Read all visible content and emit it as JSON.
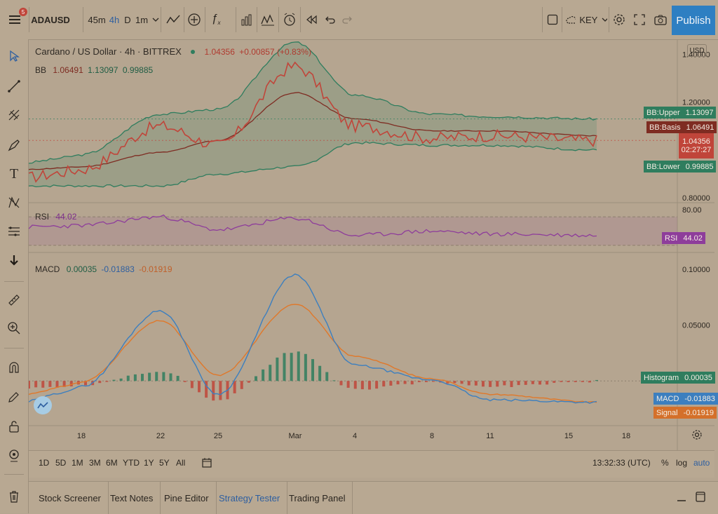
{
  "toolbar": {
    "menu_badge": "5",
    "symbol": "ADAUSD",
    "intervals": [
      "45m",
      "4h",
      "D",
      "1m"
    ],
    "account": "KEY",
    "publish": "Publish"
  },
  "legend": {
    "main": {
      "name": "Cardano / US Dollar · 4h · BITTREX",
      "price": "1.04356",
      "change": "+0.00857 (+0.83%)"
    },
    "bb": {
      "name": "BB",
      "v1": "1.06491",
      "v2": "1.13097",
      "v3": "0.99885"
    },
    "rsi": {
      "name": "RSI",
      "value": "44.02"
    },
    "macd": {
      "name": "MACD",
      "v1": "0.00035",
      "v2": "-0.01883",
      "v3": "-0.01919"
    }
  },
  "price_axis": {
    "currency": "USD",
    "main_ticks": [
      "1.40000",
      "1.20000",
      "1.00000",
      "0.80000"
    ],
    "rsi_ticks": [
      "80.00"
    ],
    "macd_ticks": [
      "0.10000",
      "0.05000"
    ]
  },
  "tags": {
    "bb_upper": {
      "label": "BB:Upper",
      "value": "1.13097"
    },
    "bb_basis": {
      "label": "BB:Basis",
      "value": "1.06491"
    },
    "price": {
      "value": "1.04356",
      "countdown": "02:27:27"
    },
    "bb_lower": {
      "label": "BB:Lower",
      "value": "0.99885"
    },
    "rsi": {
      "label": "RSI",
      "value": "44.02"
    },
    "hist": {
      "label": "Histogram",
      "value": "0.00035"
    },
    "macd": {
      "label": "MACD",
      "value": "-0.01883"
    },
    "signal": {
      "label": "Signal",
      "value": "-0.01919"
    }
  },
  "time_axis": [
    "18",
    "22",
    "25",
    "Mar",
    "4",
    "8",
    "11",
    "15",
    "18"
  ],
  "bottom": {
    "ranges": [
      "1D",
      "5D",
      "1M",
      "3M",
      "6M",
      "YTD",
      "1Y",
      "5Y",
      "All"
    ],
    "clock": "13:32:33 (UTC)",
    "pct": "%",
    "log": "log",
    "auto": "auto"
  },
  "panels": [
    "Stock Screener",
    "Text Notes",
    "Pine Editor",
    "Strategy Tester",
    "Trading Panel"
  ],
  "colors": {
    "price": "#c0453a",
    "bb_band": "#2f7d5e",
    "bb_basis": "#7e2c22",
    "rsi": "#8e3d9b",
    "macd": "#3c7fbf",
    "signal": "#e0782a",
    "hist_up": "#2f7d5e",
    "hist_down": "#c0453a",
    "accent": "#2e7fc2"
  },
  "chart_data": {
    "type": "line",
    "x": [
      "18",
      "22",
      "25",
      "Mar",
      "4",
      "8",
      "11",
      "15"
    ],
    "series": [
      {
        "name": "Cardano / US Dollar",
        "values": [
          0.92,
          1.1,
          1.02,
          1.35,
          1.1,
          1.05,
          1.06,
          1.04
        ]
      },
      {
        "name": "BB:Upper",
        "values": [
          0.98,
          1.15,
          1.17,
          1.45,
          1.23,
          1.15,
          1.14,
          1.13
        ]
      },
      {
        "name": "BB:Basis",
        "values": [
          0.93,
          0.99,
          1.04,
          1.24,
          1.13,
          1.08,
          1.08,
          1.06
        ]
      },
      {
        "name": "BB:Lower",
        "values": [
          0.85,
          0.85,
          0.9,
          0.93,
          1.03,
          1.02,
          1.02,
          1.0
        ]
      },
      {
        "name": "RSI",
        "values": [
          58,
          70,
          52,
          68,
          44,
          50,
          46,
          44
        ]
      },
      {
        "name": "MACD",
        "values": [
          -0.005,
          0.063,
          -0.012,
          0.095,
          0.014,
          0.001,
          -0.017,
          -0.019
        ]
      },
      {
        "name": "Signal",
        "values": [
          -0.001,
          0.054,
          0.005,
          0.069,
          0.022,
          0.002,
          -0.012,
          -0.019
        ]
      }
    ],
    "ylim_main": [
      0.8,
      1.45
    ]
  }
}
